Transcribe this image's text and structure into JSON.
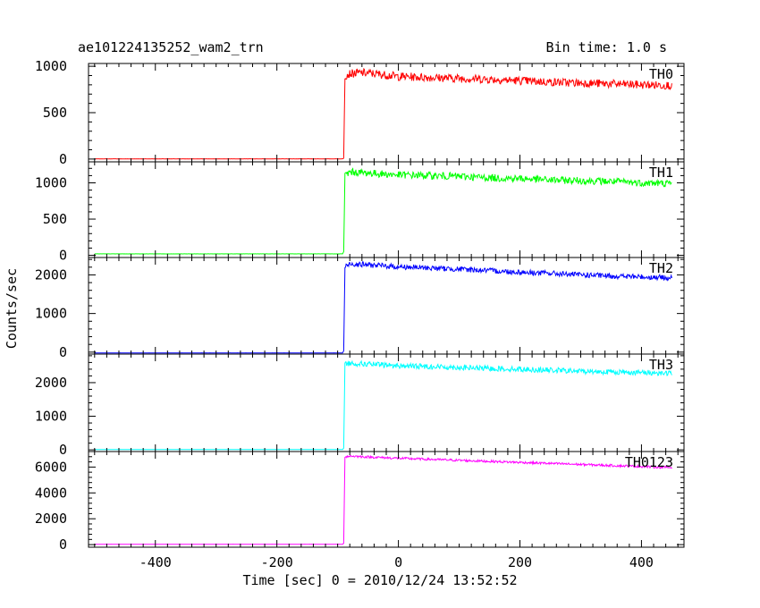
{
  "header": {
    "title": "ae101224135252_wam2_trn",
    "bin_time": "Bin time: 1.0 s"
  },
  "chart_data": {
    "type": "line",
    "xlabel": "Time [sec] 0 = 2010/12/24 13:52:52",
    "ylabel": "Counts/sec",
    "xlim": [
      -510,
      470
    ],
    "x_ticks": [
      "-400",
      "-200",
      "0",
      "200",
      "400"
    ],
    "x_tick_values": [
      -400,
      -200,
      0,
      200,
      400
    ],
    "panels": [
      {
        "name": "TH0",
        "color": "#ff0000",
        "ylim": [
          -30,
          1030
        ],
        "y_ticks": [
          "0",
          "500",
          "1000"
        ],
        "y_tick_values": [
          0,
          500,
          1000
        ],
        "x": [
          -500,
          -92,
          -90,
          -88,
          -80,
          -60,
          -40,
          -20,
          0,
          50,
          100,
          150,
          200,
          250,
          300,
          350,
          400,
          450
        ],
        "y": [
          2,
          2,
          10,
          900,
          920,
          930,
          920,
          905,
          890,
          880,
          870,
          860,
          845,
          830,
          820,
          810,
          800,
          795
        ],
        "noise": 45
      },
      {
        "name": "TH1",
        "color": "#00ff00",
        "ylim": [
          -30,
          1290
        ],
        "y_ticks": [
          "0",
          "500",
          "1000"
        ],
        "y_tick_values": [
          0,
          500,
          1000
        ],
        "x": [
          -500,
          -92,
          -90,
          -88,
          -80,
          -60,
          -40,
          -20,
          0,
          50,
          100,
          150,
          200,
          250,
          300,
          350,
          400,
          450
        ],
        "y": [
          20,
          20,
          50,
          1100,
          1150,
          1140,
          1130,
          1120,
          1110,
          1100,
          1090,
          1070,
          1060,
          1040,
          1030,
          1020,
          1000,
          990
        ],
        "noise": 50
      },
      {
        "name": "TH2",
        "color": "#0000ff",
        "ylim": [
          -50,
          2450
        ],
        "y_ticks": [
          "0",
          "1000",
          "2000"
        ],
        "y_tick_values": [
          0,
          1000,
          2000
        ],
        "x": [
          -500,
          -92,
          -90,
          -88,
          -80,
          -60,
          -40,
          -20,
          0,
          50,
          100,
          150,
          200,
          250,
          300,
          350,
          400,
          450
        ],
        "y": [
          -20,
          -20,
          30,
          2200,
          2290,
          2270,
          2250,
          2230,
          2210,
          2180,
          2150,
          2110,
          2070,
          2040,
          2000,
          1970,
          1950,
          1920
        ],
        "noise": 70
      },
      {
        "name": "TH3",
        "color": "#00ffff",
        "ylim": [
          -50,
          2850
        ],
        "y_ticks": [
          "0",
          "1000",
          "2000"
        ],
        "y_tick_values": [
          0,
          1000,
          2000
        ],
        "x": [
          -500,
          -92,
          -90,
          -88,
          -80,
          -60,
          -40,
          -20,
          0,
          50,
          100,
          150,
          200,
          250,
          300,
          350,
          400,
          450
        ],
        "y": [
          10,
          10,
          50,
          2550,
          2580,
          2560,
          2540,
          2520,
          2500,
          2480,
          2450,
          2420,
          2400,
          2370,
          2340,
          2320,
          2300,
          2280
        ],
        "noise": 80
      },
      {
        "name": "TH0123",
        "color": "#ff00ff",
        "ylim": [
          -200,
          7200
        ],
        "y_ticks": [
          "0",
          "2000",
          "4000",
          "6000"
        ],
        "y_tick_values": [
          0,
          2000,
          4000,
          6000
        ],
        "x": [
          -500,
          -92,
          -90,
          -88,
          -80,
          -60,
          -40,
          -20,
          0,
          50,
          100,
          150,
          200,
          250,
          300,
          350,
          400,
          450
        ],
        "y": [
          30,
          30,
          100,
          6800,
          6850,
          6800,
          6760,
          6720,
          6680,
          6600,
          6520,
          6440,
          6360,
          6280,
          6200,
          6120,
          6040,
          5960
        ],
        "noise": 90
      }
    ]
  }
}
